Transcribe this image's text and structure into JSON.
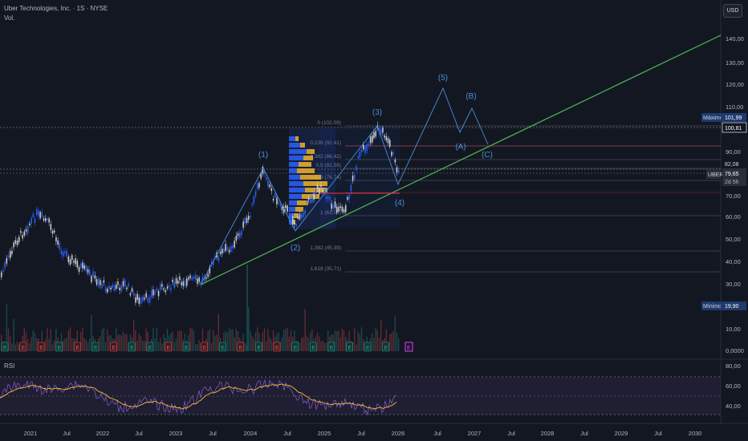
{
  "header": {
    "symbol_line": "Uber Technologies, Inc. · 1S · NYSE",
    "vol_label": "Vol."
  },
  "currency_button": "USD",
  "rsi_label": "RSI",
  "price_axis": {
    "ticks": [
      "140,00",
      "130,00",
      "120,00",
      "110,00",
      "90,00",
      "70,00",
      "60,00",
      "50,00",
      "40,00",
      "30,00",
      "10,00",
      "0,0000"
    ],
    "rsi_ticks": [
      "80,00",
      "60,00",
      "40,00"
    ]
  },
  "price_tags": {
    "maximo_label": "Máximo",
    "maximo_value": "101,99",
    "p1": "100,81",
    "p2": "82,08",
    "ticker": "UBER",
    "current": "79,65",
    "countdown": "2d 5h",
    "minimo_label": "Mínimo",
    "minimo_value": "19,90"
  },
  "time_axis": [
    "2021",
    "Jul",
    "2022",
    "Jul",
    "2023",
    "Jul",
    "2024",
    "Jul",
    "2025",
    "Jul",
    "2026",
    "Jul",
    "2027",
    "Jul",
    "2028",
    "Jul",
    "2029",
    "Jul",
    "2030"
  ],
  "fib_levels": [
    "0 (102,09)",
    "0,236 (92,41)",
    "0,382 (86,42)",
    "0,5 (81,58)",
    "0,618 (76,74)",
    "1 (61,07)",
    "1,382 (45,39)",
    "1,618 (35,71)"
  ],
  "waves": [
    "(1)",
    "(2)",
    "(3)",
    "(4)",
    "(5)",
    "(A)",
    "(B)",
    "(C)"
  ],
  "earnings_markers": [
    "E",
    "E",
    "E",
    "E",
    "E",
    "E",
    "E",
    "E",
    "E",
    "E",
    "E",
    "E",
    "E",
    "E",
    "E",
    "E",
    "E",
    "E",
    "E",
    "E",
    "E",
    "E"
  ],
  "colors": {
    "background": "#131722",
    "up": "#2962ff",
    "down": "#d1d4dc",
    "trendline": "#4caf50",
    "wave": "#4b8fd9",
    "rsi": "#7e57c2",
    "rsi_ma": "#fbc02d",
    "fib": "#787b86",
    "vp_up": "#2962ff",
    "vp_down": "#f0b429",
    "resistance": "#f23645"
  }
}
